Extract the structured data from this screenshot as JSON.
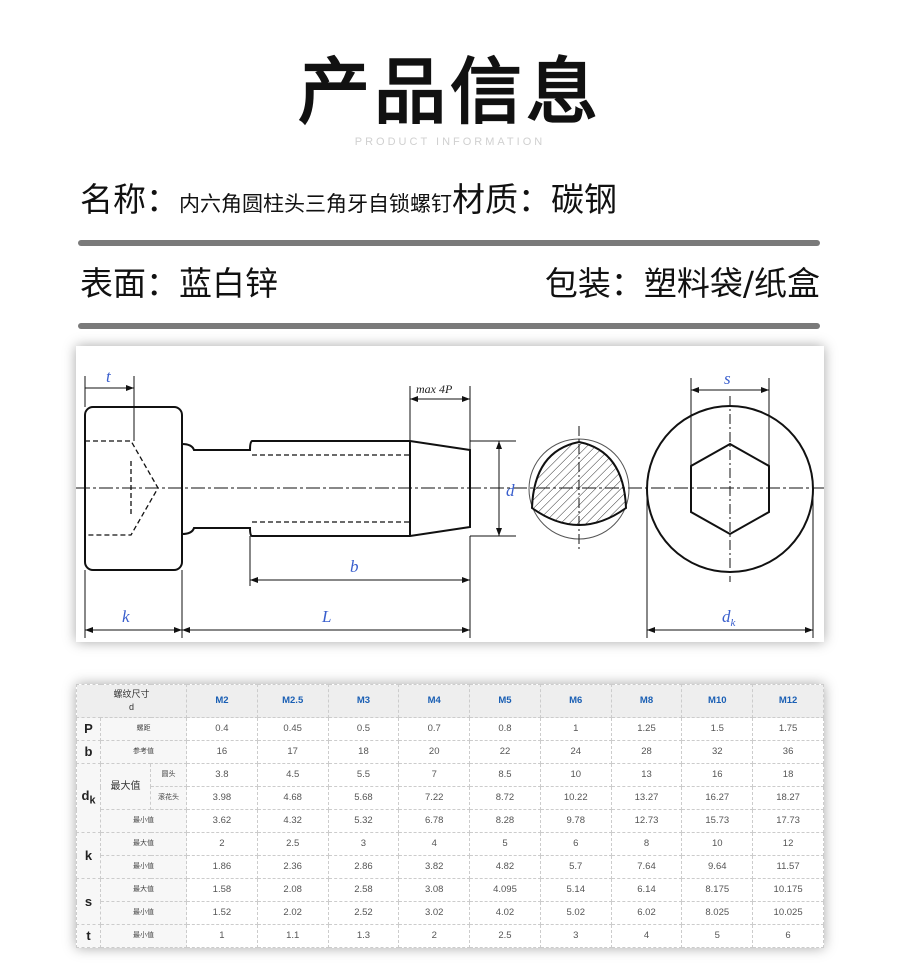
{
  "header": {
    "title": "产品信息",
    "subtitle": "PRODUCT INFORMATION"
  },
  "info": {
    "name_label": "名称：",
    "name_value": "内六角圆柱头三角牙自锁螺钉",
    "material_label": "材质：",
    "material_value": "碳钢",
    "surface_label": "表面：",
    "surface_value": "蓝白锌",
    "package_label": "包装：",
    "package_value": "塑料袋/纸盒"
  },
  "drawing": {
    "labels": {
      "t": "t",
      "max4p": "max 4P",
      "d": "d",
      "b": "b",
      "k": "k",
      "L": "L",
      "s": "s",
      "dk": "d",
      "dk_sub": "k"
    },
    "line_color": "#111111",
    "dimension_color": "#3a5fcd"
  },
  "table": {
    "corner_line1": "螺纹尺寸",
    "corner_line2": "d",
    "columns": [
      "M2",
      "M2.5",
      "M3",
      "M4",
      "M5",
      "M6",
      "M8",
      "M10",
      "M12"
    ],
    "rows": [
      {
        "symbol": "P",
        "group": "",
        "label": "螺距",
        "values": [
          "0.4",
          "0.45",
          "0.5",
          "0.7",
          "0.8",
          "1",
          "1.25",
          "1.5",
          "1.75"
        ]
      },
      {
        "symbol": "b",
        "group": "",
        "label": "参考值",
        "values": [
          "16",
          "17",
          "18",
          "20",
          "22",
          "24",
          "28",
          "32",
          "36"
        ]
      },
      {
        "symbol": "d",
        "symbol_sub": "k",
        "group": "最大值",
        "label": "圆头",
        "values": [
          "3.8",
          "4.5",
          "5.5",
          "7",
          "8.5",
          "10",
          "13",
          "16",
          "18"
        ]
      },
      {
        "symbol": "",
        "group": "",
        "label": "滚花头",
        "values": [
          "3.98",
          "4.68",
          "5.68",
          "7.22",
          "8.72",
          "10.22",
          "13.27",
          "16.27",
          "18.27"
        ]
      },
      {
        "symbol": "",
        "group": "",
        "label": "最小值",
        "values": [
          "3.62",
          "4.32",
          "5.32",
          "6.78",
          "8.28",
          "9.78",
          "12.73",
          "15.73",
          "17.73"
        ]
      },
      {
        "symbol": "k",
        "group": "",
        "label": "最大值",
        "values": [
          "2",
          "2.5",
          "3",
          "4",
          "5",
          "6",
          "8",
          "10",
          "12"
        ]
      },
      {
        "symbol": "",
        "group": "",
        "label": "最小值",
        "values": [
          "1.86",
          "2.36",
          "2.86",
          "3.82",
          "4.82",
          "5.7",
          "7.64",
          "9.64",
          "11.57"
        ]
      },
      {
        "symbol": "s",
        "group": "",
        "label": "最大值",
        "values": [
          "1.58",
          "2.08",
          "2.58",
          "3.08",
          "4.095",
          "5.14",
          "6.14",
          "8.175",
          "10.175"
        ]
      },
      {
        "symbol": "",
        "group": "",
        "label": "最小值",
        "values": [
          "1.52",
          "2.02",
          "2.52",
          "3.02",
          "4.02",
          "5.02",
          "6.02",
          "8.025",
          "10.025"
        ]
      },
      {
        "symbol": "t",
        "group": "",
        "label": "最小值",
        "values": [
          "1",
          "1.1",
          "1.3",
          "2",
          "2.5",
          "3",
          "4",
          "5",
          "6"
        ]
      }
    ]
  }
}
